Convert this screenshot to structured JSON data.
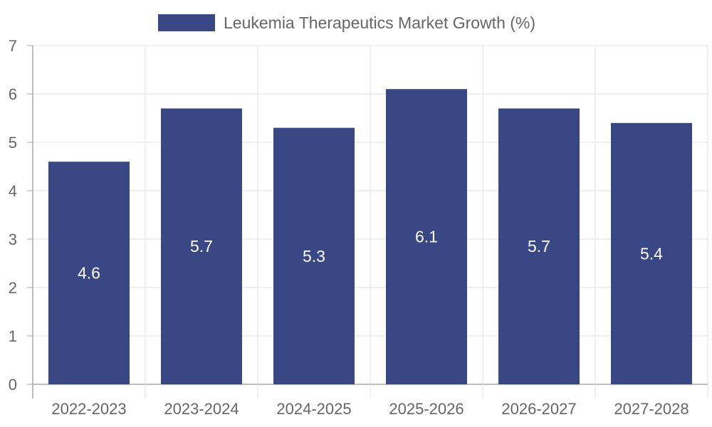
{
  "chart_data": {
    "type": "bar",
    "title": "",
    "xlabel": "",
    "ylabel": "",
    "categories": [
      "2022-2023",
      "2023-2024",
      "2024-2025",
      "2025-2026",
      "2026-2027",
      "2027-2028"
    ],
    "series": [
      {
        "name": "Leukemia Therapeutics Market Growth (%)",
        "values": [
          4.6,
          5.7,
          5.3,
          6.1,
          5.7,
          5.4
        ],
        "color": "#394884"
      }
    ],
    "ylim": [
      0,
      7
    ],
    "yticks": [
      "0",
      "1",
      "2",
      "3",
      "4",
      "5",
      "6",
      "7"
    ],
    "data_labels": [
      "4.6",
      "5.7",
      "5.3",
      "6.1",
      "5.7",
      "5.4"
    ],
    "legend_position": "top-center",
    "grid": true,
    "colors": {
      "grid": "#e0e0e0",
      "axis": "#a8a8a8",
      "text": "#666666",
      "label": "#ffffff"
    }
  }
}
